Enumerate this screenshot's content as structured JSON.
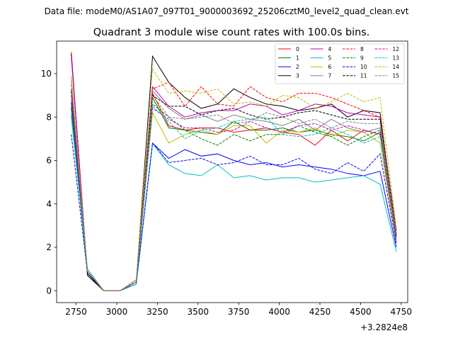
{
  "chart_data": {
    "type": "line",
    "suptitle": "Data file: modeM0/AS1A07_097T01_9000003692_25206cztM0_level2_quad_clean.evt",
    "title": "Quadrant 3 module wise count rates with 100.0s bins.",
    "xlabel": "",
    "ylabel": "",
    "x_offset_label": "+3.2824e8",
    "xlim": [
      2630,
      4790
    ],
    "ylim": [
      -0.55,
      11.5
    ],
    "xticks": [
      2750,
      3000,
      3250,
      3500,
      3750,
      4000,
      4250,
      4500,
      4750
    ],
    "yticks": [
      0,
      2,
      4,
      6,
      8,
      10
    ],
    "x": [
      2720,
      2820,
      2920,
      3020,
      3120,
      3220,
      3320,
      3420,
      3520,
      3620,
      3720,
      3820,
      3920,
      4020,
      4120,
      4220,
      4320,
      4420,
      4520,
      4620,
      4720
    ],
    "legend": {
      "location": "top-right",
      "columns": 4
    },
    "series": [
      {
        "name": "0",
        "color": "#ff0000",
        "dash": "solid",
        "values": [
          11.0,
          0.7,
          0.0,
          0.0,
          0.4,
          9.1,
          7.6,
          7.4,
          7.5,
          7.5,
          7.3,
          7.4,
          7.5,
          7.3,
          7.2,
          6.7,
          7.4,
          6.9,
          7.4,
          7.2,
          2.2
        ]
      },
      {
        "name": "1",
        "color": "#008000",
        "dash": "solid",
        "values": [
          8.4,
          0.8,
          0.0,
          0.0,
          0.4,
          8.9,
          7.5,
          7.4,
          7.3,
          7.2,
          7.8,
          7.4,
          7.4,
          7.5,
          7.3,
          7.4,
          7.2,
          7.1,
          6.9,
          7.3,
          2.4
        ]
      },
      {
        "name": "2",
        "color": "#0000ff",
        "dash": "solid",
        "values": [
          8.7,
          0.8,
          0.0,
          0.0,
          0.3,
          6.8,
          6.1,
          6.5,
          6.2,
          6.3,
          6.0,
          5.8,
          5.9,
          5.7,
          5.8,
          5.7,
          5.6,
          5.4,
          5.3,
          5.5,
          2.0
        ]
      },
      {
        "name": "3",
        "color": "#000000",
        "dash": "solid",
        "values": [
          10.9,
          0.7,
          0.0,
          0.0,
          0.4,
          10.8,
          9.6,
          8.9,
          8.4,
          8.6,
          9.3,
          8.9,
          8.6,
          8.5,
          8.3,
          8.4,
          8.6,
          8.0,
          8.3,
          8.2,
          2.5
        ]
      },
      {
        "name": "4",
        "color": "#bf00bf",
        "dash": "solid",
        "values": [
          10.8,
          0.8,
          0.0,
          0.0,
          0.5,
          9.4,
          8.5,
          8.0,
          8.2,
          8.3,
          8.3,
          8.6,
          8.5,
          8.1,
          8.3,
          8.6,
          8.5,
          8.2,
          8.1,
          8.0,
          2.8
        ]
      },
      {
        "name": "5",
        "color": "#00bfbf",
        "dash": "solid",
        "values": [
          8.0,
          1.0,
          0.0,
          0.0,
          0.3,
          6.8,
          5.8,
          5.4,
          5.3,
          5.8,
          5.2,
          5.3,
          5.1,
          5.2,
          5.2,
          5.0,
          5.1,
          5.2,
          5.3,
          4.9,
          1.8
        ]
      },
      {
        "name": "6",
        "color": "#bfbf00",
        "dash": "solid",
        "values": [
          9.9,
          0.9,
          0.0,
          0.0,
          0.4,
          8.2,
          6.8,
          7.2,
          7.4,
          7.2,
          7.6,
          7.6,
          6.8,
          7.4,
          7.3,
          7.5,
          7.1,
          7.4,
          7.3,
          6.8,
          2.3
        ]
      },
      {
        "name": "7",
        "color": "#808080",
        "dash": "solid",
        "values": [
          9.7,
          0.9,
          0.0,
          0.0,
          0.4,
          9.2,
          8.4,
          7.9,
          8.1,
          7.8,
          8.1,
          7.9,
          7.8,
          7.6,
          7.9,
          7.4,
          7.9,
          7.5,
          7.3,
          7.5,
          2.6
        ]
      },
      {
        "name": "8",
        "color": "#ff0000",
        "dash": "dashed",
        "values": [
          9.3,
          0.8,
          0.0,
          0.0,
          0.4,
          9.3,
          9.6,
          8.5,
          9.4,
          8.6,
          8.5,
          9.4,
          8.9,
          8.7,
          9.1,
          9.1,
          8.9,
          8.6,
          8.3,
          8.0,
          2.7
        ]
      },
      {
        "name": "9",
        "color": "#008000",
        "dash": "dashed",
        "values": [
          8.5,
          0.9,
          0.0,
          0.0,
          0.4,
          8.6,
          8.0,
          7.4,
          7.0,
          6.7,
          7.2,
          6.9,
          7.2,
          7.2,
          7.6,
          7.3,
          7.1,
          6.7,
          7.1,
          7.4,
          2.4
        ]
      },
      {
        "name": "10",
        "color": "#0000ff",
        "dash": "dashed",
        "values": [
          7.2,
          0.8,
          0.0,
          0.0,
          0.4,
          6.8,
          5.9,
          6.0,
          6.1,
          5.8,
          5.9,
          6.2,
          5.8,
          5.8,
          6.1,
          5.6,
          5.4,
          5.9,
          5.5,
          6.3,
          2.2
        ]
      },
      {
        "name": "11",
        "color": "#000000",
        "dash": "dashed",
        "values": [
          9.2,
          0.8,
          0.0,
          0.0,
          0.4,
          9.0,
          8.5,
          8.5,
          8.1,
          8.3,
          8.4,
          8.1,
          7.9,
          8.0,
          8.2,
          8.3,
          8.1,
          7.9,
          7.9,
          7.9,
          2.6
        ]
      },
      {
        "name": "12",
        "color": "#bf00bf",
        "dash": "dashed",
        "values": [
          9.0,
          0.9,
          0.0,
          0.0,
          0.4,
          8.4,
          7.9,
          7.5,
          7.5,
          7.3,
          7.4,
          7.8,
          7.5,
          7.3,
          7.6,
          7.7,
          7.4,
          7.6,
          7.4,
          7.2,
          2.5
        ]
      },
      {
        "name": "13",
        "color": "#00bfbf",
        "dash": "dashed",
        "values": [
          8.1,
          0.9,
          0.0,
          0.0,
          0.4,
          8.5,
          7.8,
          7.0,
          7.4,
          7.5,
          7.8,
          7.9,
          8.0,
          7.2,
          7.1,
          7.2,
          7.5,
          7.2,
          6.8,
          7.1,
          2.7
        ]
      },
      {
        "name": "14",
        "color": "#bfbf00",
        "dash": "dashed",
        "values": [
          9.8,
          0.9,
          0.0,
          0.0,
          0.5,
          10.2,
          9.1,
          9.2,
          9.1,
          9.3,
          8.6,
          8.7,
          8.5,
          9.0,
          8.9,
          8.4,
          8.7,
          9.1,
          8.7,
          8.9,
          2.9
        ]
      },
      {
        "name": "15",
        "color": "#808080",
        "dash": "dashed",
        "values": [
          9.5,
          0.9,
          0.0,
          0.0,
          0.4,
          9.0,
          8.0,
          7.9,
          8.0,
          8.1,
          7.7,
          7.8,
          8.2,
          8.0,
          7.7,
          7.9,
          7.5,
          7.8,
          7.7,
          7.7,
          2.6
        ]
      }
    ]
  }
}
